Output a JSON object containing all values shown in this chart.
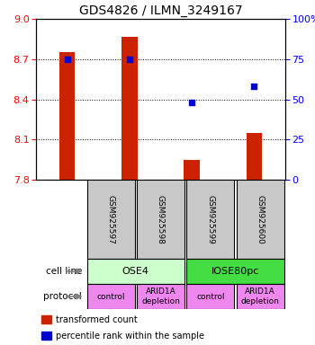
{
  "title": "GDS4826 / ILMN_3249167",
  "samples": [
    "GSM925597",
    "GSM925598",
    "GSM925599",
    "GSM925600"
  ],
  "bar_values": [
    8.75,
    8.87,
    7.95,
    8.15
  ],
  "percentile_values": [
    75.0,
    75.0,
    48.0,
    58.0
  ],
  "ylim_left": [
    7.8,
    9.0
  ],
  "ylim_right": [
    0,
    100
  ],
  "yticks_left": [
    7.8,
    8.1,
    8.4,
    8.7,
    9.0
  ],
  "yticks_right": [
    0,
    25,
    50,
    75,
    100
  ],
  "bar_color": "#cc2200",
  "percentile_color": "#0000cc",
  "bar_width": 0.25,
  "cell_lines": [
    [
      "OSE4",
      0,
      2
    ],
    [
      "IOSE80pc",
      2,
      4
    ]
  ],
  "cell_line_colors": [
    "#ccffcc",
    "#44dd44"
  ],
  "protocols": [
    [
      "control",
      0,
      1
    ],
    [
      "ARID1A\ndepletion",
      1,
      2
    ],
    [
      "control",
      2,
      3
    ],
    [
      "ARID1A\ndepletion",
      3,
      4
    ]
  ],
  "protocol_color": "#ee88ee",
  "sample_box_color": "#c8c8c8",
  "dotted_yticks": [
    8.1,
    8.4,
    8.7
  ],
  "legend_bar_label": "transformed count",
  "legend_pct_label": "percentile rank within the sample",
  "cell_line_label": "cell line",
  "protocol_label": "protocol"
}
